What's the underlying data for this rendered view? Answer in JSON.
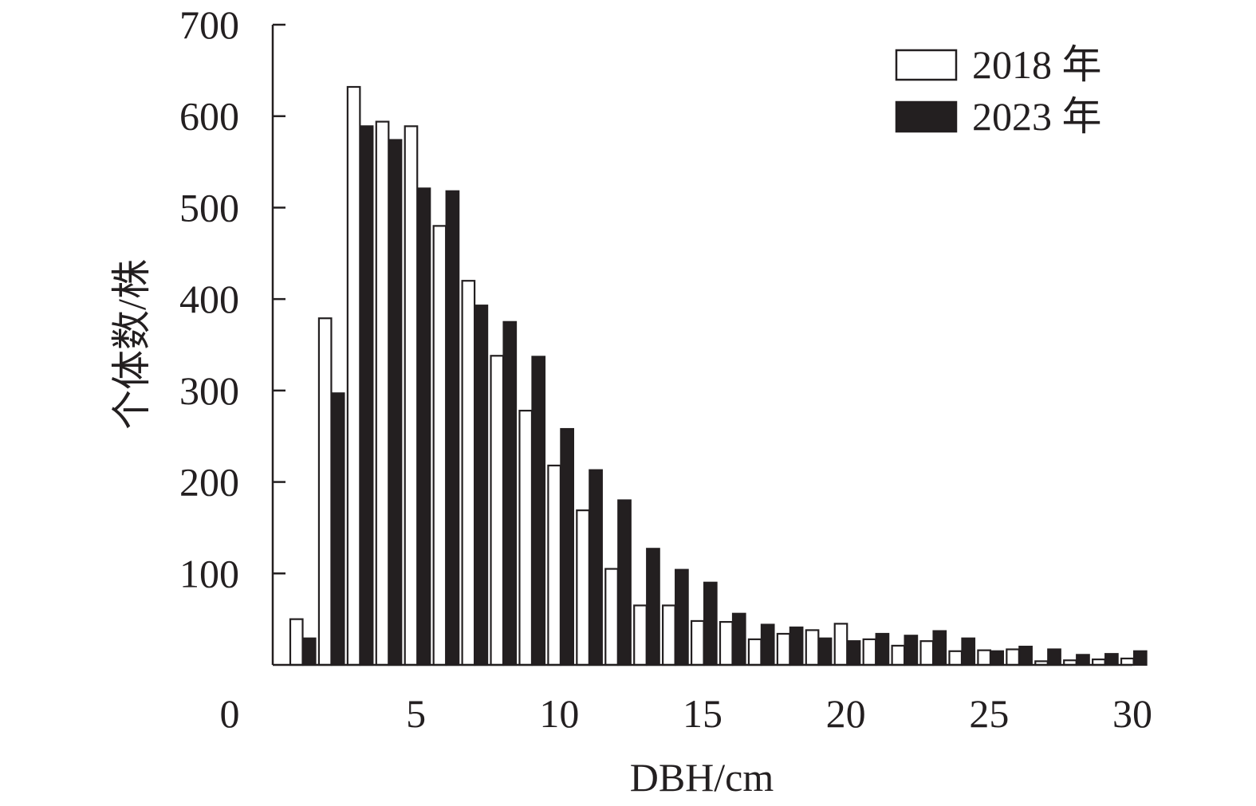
{
  "chart_data": {
    "type": "bar",
    "xlabel": "DBH/cm",
    "ylabel": "个体数/株",
    "ylim": [
      0,
      700
    ],
    "xlim": [
      0,
      30
    ],
    "yticks": [
      100,
      200,
      300,
      400,
      500,
      600,
      700
    ],
    "xticks": [
      0,
      5,
      10,
      15,
      20,
      25,
      30
    ],
    "grid": false,
    "legend_position": "top-right",
    "categories": [
      1,
      2,
      3,
      4,
      5,
      6,
      7,
      8,
      9,
      10,
      11,
      12,
      13,
      14,
      15,
      16,
      17,
      18,
      19,
      20,
      21,
      22,
      23,
      24,
      25,
      26,
      27,
      28,
      29,
      30
    ],
    "series": [
      {
        "name": "2018 年",
        "fill": "#ffffff",
        "stroke": "#231f20",
        "values": [
          50,
          379,
          632,
          594,
          589,
          480,
          420,
          338,
          278,
          218,
          169,
          105,
          65,
          65,
          48,
          47,
          28,
          34,
          38,
          45,
          28,
          21,
          26,
          15,
          16,
          17,
          4,
          5,
          6,
          7
        ]
      },
      {
        "name": "2023 年",
        "fill": "#231f20",
        "stroke": "#231f20",
        "values": [
          29,
          297,
          589,
          574,
          521,
          518,
          393,
          375,
          337,
          258,
          213,
          180,
          127,
          104,
          90,
          56,
          44,
          41,
          29,
          26,
          34,
          32,
          37,
          29,
          15,
          20,
          17,
          11,
          12,
          15
        ]
      }
    ]
  }
}
